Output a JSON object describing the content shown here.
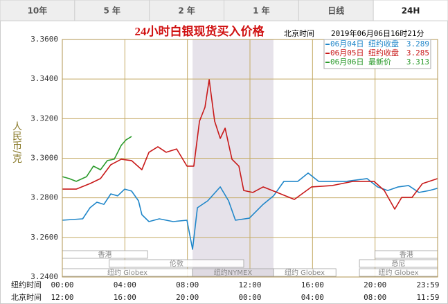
{
  "tabs": {
    "items": [
      "10年",
      "5 年",
      "2 年",
      "1 年",
      "日线",
      "24H"
    ],
    "selected": 5
  },
  "chart_data": {
    "type": "line",
    "title": "24小时白银现货买入价格",
    "timestamp_label": "北京时间",
    "timestamp": "2019年06月06日16时21分",
    "ylabel": "人民币/克",
    "x_axis_labels": [
      "纽约时间",
      "北京时间"
    ],
    "xlim": [
      0,
      24
    ],
    "xticks": [
      {
        "value": 0,
        "label": "00:00"
      },
      {
        "value": 4,
        "label": "04:00"
      },
      {
        "value": 8,
        "label": "08:00"
      },
      {
        "value": 12,
        "label": "12:00"
      },
      {
        "value": 16,
        "label": "16:00"
      },
      {
        "value": 20,
        "label": "20:00"
      },
      {
        "value": 24,
        "label": "23:59"
      }
    ],
    "x2_tick_labels": [
      "12:00",
      "16:00",
      "20:00",
      "00:00",
      "04:00",
      "08:00",
      "11:59"
    ],
    "ylim": [
      3.24,
      3.36
    ],
    "yticks": [
      {
        "value": 3.24,
        "label": "3.2400"
      },
      {
        "value": 3.26,
        "label": "3.2600"
      },
      {
        "value": 3.28,
        "label": "3.2800"
      },
      {
        "value": 3.3,
        "label": "3.3000"
      },
      {
        "value": 3.32,
        "label": "3.3200"
      },
      {
        "value": 3.34,
        "label": "3.3400"
      },
      {
        "value": 3.36,
        "label": "3.3600"
      }
    ],
    "grid": true,
    "market_sessions": [
      {
        "name": "香港",
        "periods": [
          [
            0,
            5.45
          ],
          [
            20,
            24
          ]
        ]
      },
      {
        "name": "伦敦",
        "periods": [
          [
            3,
            11.6
          ]
        ]
      },
      {
        "name": "悉尼",
        "periods": [
          [
            19,
            24
          ]
        ]
      },
      {
        "name": "纽约 Globex",
        "periods": [
          [
            0,
            8.33
          ],
          [
            13.5,
            17.5
          ],
          [
            19,
            24
          ]
        ]
      },
      {
        "name": "纽约NYMEX",
        "periods": [
          [
            8.33,
            13.5
          ]
        ]
      }
    ],
    "series": [
      {
        "name": "06月04日",
        "label": "纽约收盘",
        "legend_value": 3.289,
        "color": "#1f86c9",
        "x": [
          0,
          1.3,
          1.77,
          2.21,
          2.66,
          3.1,
          3.54,
          3.99,
          4.43,
          4.87,
          5.09,
          5.54,
          6.2,
          7.09,
          7.97,
          8.33,
          8.64,
          9.3,
          10.1,
          10.63,
          11.07,
          11.96,
          12.84,
          13.51,
          14.17,
          15.06,
          15.72,
          16.39,
          18.16,
          19.49,
          20.15,
          20.81,
          21.48,
          22.14,
          22.81,
          23.47,
          24
        ],
        "values": [
          3.2687,
          3.2694,
          3.275,
          3.2778,
          3.2767,
          3.282,
          3.281,
          3.2844,
          3.2834,
          3.2785,
          3.2715,
          3.268,
          3.2694,
          3.268,
          3.2687,
          3.254,
          3.275,
          3.2785,
          3.2855,
          3.2785,
          3.2687,
          3.2697,
          3.2767,
          3.281,
          3.2883,
          3.2883,
          3.2925,
          3.2883,
          3.2883,
          3.2897,
          3.2855,
          3.2837,
          3.2855,
          3.2862,
          3.2827,
          3.2837,
          3.2848
        ]
      },
      {
        "name": "06月05日",
        "label": "纽约收盘",
        "legend_value": 3.285,
        "color": "#c81818",
        "x": [
          0,
          0.89,
          1.77,
          2.44,
          3.1,
          3.77,
          4.43,
          5.09,
          5.54,
          6.11,
          6.64,
          7.31,
          7.97,
          8.41,
          8.77,
          9.12,
          9.39,
          9.74,
          10.1,
          10.41,
          10.85,
          11.29,
          11.6,
          12.18,
          12.84,
          13.73,
          14.84,
          15.94,
          17.27,
          18.6,
          19.93,
          20.59,
          21.26,
          21.7,
          22.36,
          23.03,
          24
        ],
        "values": [
          3.2844,
          3.2844,
          3.2872,
          3.2897,
          3.2967,
          3.2995,
          3.2988,
          3.2942,
          3.303,
          3.3058,
          3.303,
          3.3047,
          3.296,
          3.296,
          3.3187,
          3.3257,
          3.3397,
          3.3187,
          3.31,
          3.3152,
          3.2995,
          3.296,
          3.2837,
          3.2827,
          3.2855,
          3.2827,
          3.2792,
          3.2855,
          3.2862,
          3.2883,
          3.2883,
          3.2837,
          3.2743,
          3.2802,
          3.2802,
          3.2872,
          3.2897
        ]
      },
      {
        "name": "06月06日",
        "label": "最新价",
        "legend_value": 3.313,
        "color": "#2a9a2a",
        "x": [
          0,
          0.44,
          0.89,
          1.55,
          1.99,
          2.44,
          2.88,
          3.32,
          3.77,
          4.08,
          4.43
        ],
        "values": [
          3.2907,
          3.2897,
          3.2883,
          3.2907,
          3.296,
          3.2942,
          3.2988,
          3.2995,
          3.3065,
          3.3093,
          3.311
        ]
      }
    ]
  }
}
